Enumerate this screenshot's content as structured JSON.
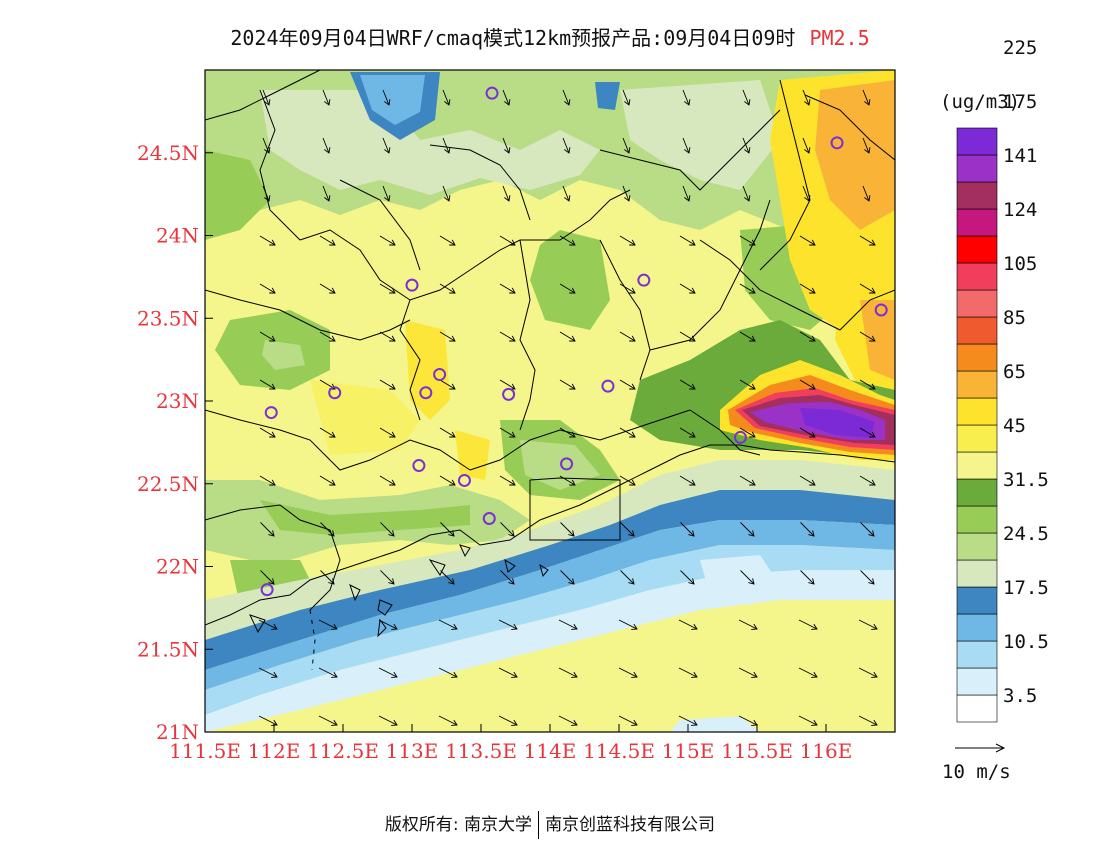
{
  "title": {
    "main": "2024年09月04日WRF/cmaq模式12km预报产品:09月04日09时",
    "variable": "PM2.5"
  },
  "map": {
    "lon_range": [
      111.5,
      116.5
    ],
    "lat_range": [
      21.0,
      25.0
    ],
    "lon_ticks": [
      "111.5E",
      "112E",
      "112.5E",
      "113E",
      "113.5E",
      "114E",
      "114.5E",
      "115E",
      "115.5E",
      "116E"
    ],
    "lat_ticks": [
      "21N",
      "21.5N",
      "22N",
      "22.5N",
      "23N",
      "23.5N",
      "24N",
      "24.5N"
    ],
    "stations": [
      {
        "lon": 113.58,
        "lat": 24.86
      },
      {
        "lon": 116.08,
        "lat": 24.56
      },
      {
        "lon": 113.0,
        "lat": 23.7
      },
      {
        "lon": 114.68,
        "lat": 23.73
      },
      {
        "lon": 116.4,
        "lat": 23.55
      },
      {
        "lon": 112.44,
        "lat": 23.05
      },
      {
        "lon": 113.1,
        "lat": 23.05
      },
      {
        "lon": 113.2,
        "lat": 23.16
      },
      {
        "lon": 113.7,
        "lat": 23.04
      },
      {
        "lon": 114.42,
        "lat": 23.09
      },
      {
        "lon": 111.98,
        "lat": 22.93
      },
      {
        "lon": 113.05,
        "lat": 22.61
      },
      {
        "lon": 113.38,
        "lat": 22.52
      },
      {
        "lon": 114.12,
        "lat": 22.62
      },
      {
        "lon": 115.38,
        "lat": 22.78
      },
      {
        "lon": 113.56,
        "lat": 22.29
      },
      {
        "lon": 111.95,
        "lat": 21.86
      }
    ]
  },
  "colorbar": {
    "unit": "(ug/m3)",
    "colors": [
      "#ffffff",
      "#d9f0fb",
      "#a8dcf5",
      "#6fb7e4",
      "#3d86c2",
      "#d7e8bf",
      "#b9dc86",
      "#97cc57",
      "#6aab3b",
      "#f4f58a",
      "#f8ef4f",
      "#fde32c",
      "#f9b437",
      "#f58b1d",
      "#ef5b2e",
      "#f26a6a",
      "#f03e5c",
      "#ff0000",
      "#c6177f",
      "#a22f5e",
      "#9b32c8",
      "#7c2ad6"
    ],
    "labels": [
      "3.5",
      "10.5",
      "17.5",
      "24.5",
      "31.5",
      "45",
      "65",
      "85",
      "105",
      "124",
      "141",
      "175",
      "225"
    ]
  },
  "wind": {
    "reference_label": "10 m/s"
  },
  "footer": {
    "left": "版权所有: 南京大学",
    "right": "南京创蓝科技有限公司"
  }
}
